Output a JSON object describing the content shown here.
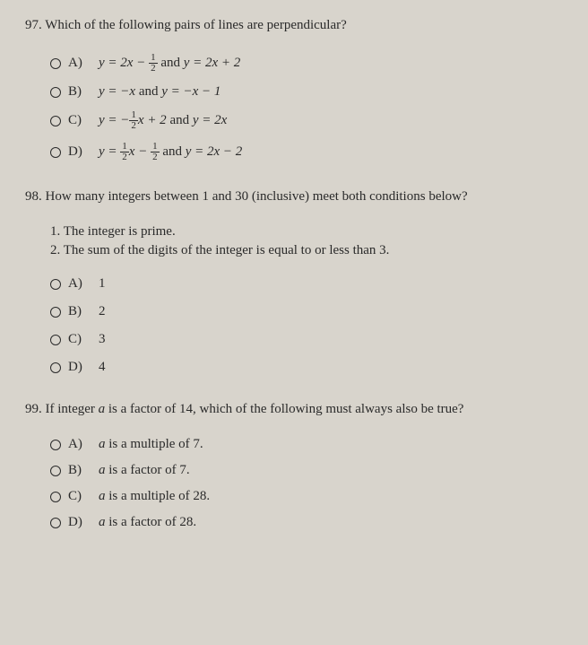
{
  "background_color": "#d8d4cc",
  "text_color": "#2a2a2a",
  "font_family": "Georgia, serif",
  "q97": {
    "number": "97.",
    "prompt": "Which of the following pairs of lines are perpendicular?",
    "options": {
      "A": {
        "letter": "A)",
        "eq1_pre": "y = 2x − ",
        "frac": {
          "n": "1",
          "d": "2"
        },
        "eq1_post": "",
        "conj": " and ",
        "eq2": "y = 2x + 2"
      },
      "B": {
        "letter": "B)",
        "eq1": "y = −x",
        "conj": " and ",
        "eq2": "y = −x − 1"
      },
      "C": {
        "letter": "C)",
        "eq1_pre": "y = −",
        "frac": {
          "n": "1",
          "d": "2"
        },
        "eq1_post": "x + 2",
        "conj": " and ",
        "eq2": "y = 2x"
      },
      "D": {
        "letter": "D)",
        "eq1_pre": "y = ",
        "frac1": {
          "n": "1",
          "d": "2"
        },
        "eq1_mid": "x − ",
        "frac2": {
          "n": "1",
          "d": "2"
        },
        "conj": " and ",
        "eq2": "y = 2x − 2"
      }
    }
  },
  "q98": {
    "number": "98.",
    "prompt": "How many integers between 1 and 30 (inclusive) meet both conditions below?",
    "cond1": "1. The integer is prime.",
    "cond2": "2. The sum of the digits of the integer is equal to or less than 3.",
    "options": {
      "A": {
        "letter": "A)",
        "val": "1"
      },
      "B": {
        "letter": "B)",
        "val": "2"
      },
      "C": {
        "letter": "C)",
        "val": "3"
      },
      "D": {
        "letter": "D)",
        "val": "4"
      }
    }
  },
  "q99": {
    "number": "99.",
    "prompt_pre": "If integer ",
    "prompt_var": "a",
    "prompt_post": " is a factor of 14, which of the following must always also be true?",
    "options": {
      "A": {
        "letter": "A)",
        "var": "a",
        "text": " is a multiple of 7."
      },
      "B": {
        "letter": "B)",
        "var": "a",
        "text": " is a factor of 7."
      },
      "C": {
        "letter": "C)",
        "var": "a",
        "text": " is a multiple of 28."
      },
      "D": {
        "letter": "D)",
        "var": "a",
        "text": " is a factor of 28."
      }
    }
  }
}
